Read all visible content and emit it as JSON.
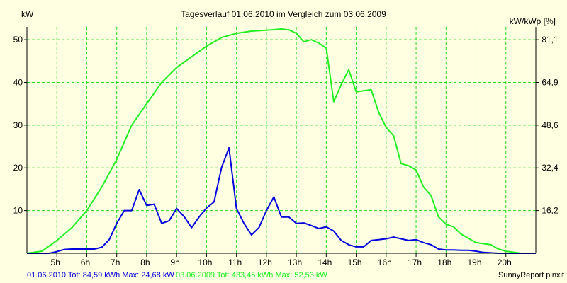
{
  "chart_data": {
    "type": "line",
    "title": "Tagesverlauf 01.06.2010 im Vergleich zum 03.06.2009",
    "ylabel_left": "kW",
    "ylabel_right": "kW/kWp [%]",
    "x_ticks": [
      "5h",
      "6h",
      "7h",
      "8h",
      "9h",
      "10h",
      "11h",
      "12h",
      "13h",
      "14h",
      "15h",
      "16h",
      "17h",
      "18h",
      "19h",
      "20h"
    ],
    "y_ticks_left": [
      10,
      20,
      30,
      40,
      50
    ],
    "y_ticks_right": [
      "16,2",
      "32,4",
      "48,6",
      "64,9",
      "81,1"
    ],
    "xlim": [
      4,
      21
    ],
    "ylim": [
      0,
      53
    ],
    "grid": true,
    "series": [
      {
        "name": "01.06.2010",
        "color": "#0000dd",
        "x": [
          4,
          4.75,
          5,
          5.25,
          5.5,
          5.75,
          6,
          6.25,
          6.5,
          6.75,
          7,
          7.25,
          7.5,
          7.75,
          8,
          8.25,
          8.5,
          8.75,
          9,
          9.25,
          9.5,
          9.75,
          10,
          10.25,
          10.5,
          10.75,
          11,
          11.25,
          11.5,
          11.75,
          12,
          12.25,
          12.5,
          12.75,
          13,
          13.25,
          13.5,
          13.75,
          14,
          14.25,
          14.5,
          14.75,
          15,
          15.25,
          15.5,
          15.75,
          16,
          16.25,
          16.5,
          16.75,
          17,
          17.25,
          17.5,
          17.75,
          18,
          18.25,
          18.5,
          18.75,
          19,
          19.25,
          19.5,
          19.75,
          20,
          20.5,
          21
        ],
        "y": [
          0,
          0,
          0.4,
          0.9,
          1,
          1,
          1,
          1,
          1.4,
          3.2,
          7,
          10,
          10,
          14.9,
          11.2,
          11.5,
          7,
          7.6,
          10.5,
          8.6,
          6,
          8.5,
          10.6,
          12,
          20,
          24.7,
          10.5,
          7,
          4.3,
          6,
          10,
          13.2,
          8.5,
          8.5,
          7,
          7.1,
          6.5,
          5.8,
          6.2,
          5.2,
          3,
          2,
          1.5,
          1.5,
          3,
          3.2,
          3.4,
          3.8,
          3.4,
          3,
          3.2,
          2.5,
          2,
          1,
          0.8,
          0.8,
          0.7,
          0.7,
          0.5,
          0.2,
          0.1,
          0,
          0,
          0,
          0
        ]
      },
      {
        "name": "03.06.2009",
        "color": "#22ee22",
        "x": [
          4,
          4.5,
          5,
          5.5,
          6,
          6.5,
          7,
          7.25,
          7.5,
          8,
          8.5,
          9,
          9.5,
          10,
          10.5,
          11,
          11.5,
          12,
          12.5,
          12.75,
          13,
          13.25,
          13.5,
          13.75,
          14,
          14.25,
          14.5,
          14.75,
          15,
          15.5,
          15.75,
          16,
          16.25,
          16.5,
          16.75,
          17,
          17.25,
          17.5,
          17.75,
          18,
          18.25,
          18.5,
          19,
          19.5,
          19.75,
          20,
          20.5,
          21
        ],
        "y": [
          0,
          0.5,
          3,
          6,
          10,
          15.5,
          22,
          26,
          30,
          35,
          40,
          43.5,
          46,
          48.5,
          50.5,
          51.5,
          52,
          52.2,
          52.5,
          52.3,
          51.5,
          49.5,
          50,
          49.2,
          48,
          35.5,
          39.5,
          43,
          37.8,
          38.3,
          33,
          29.5,
          27.5,
          21,
          20.5,
          19.5,
          15.5,
          13.5,
          8.5,
          6.8,
          6.2,
          4.5,
          2.5,
          2,
          1,
          0.5,
          0,
          0
        ]
      }
    ]
  },
  "footer": {
    "series1_text": "01.06.2010 Tot: 84,59 kWh Max: 24,68 kW",
    "series2_text": "03.06.2009 Tot: 433,45 kWh Max: 52,53 kW",
    "credit": "SunnyReport pinxit"
  }
}
